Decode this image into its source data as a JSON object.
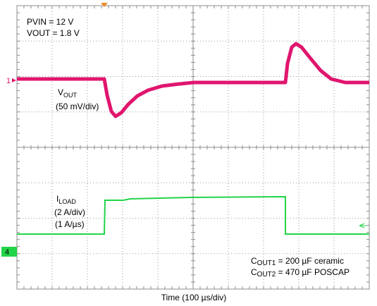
{
  "conditions": {
    "pvin": "PVIN = 12 V",
    "vout": "VOUT = 1.8 V"
  },
  "vout_label": {
    "main": "V",
    "sub": "OUT",
    "scale": "(50 mV/div)"
  },
  "iload_label": {
    "main": "I",
    "sub": "LOAD",
    "scale": "(2 A/div)",
    "slew": "(1 A/µs)"
  },
  "capacitors": [
    {
      "main": "C",
      "sub": "OUT1",
      "text": " = 200 µF ceramic"
    },
    {
      "main": "C",
      "sub": "OUT2",
      "text": " = 470 µF POSCAP"
    }
  ],
  "channels": {
    "ch1": "1",
    "ch4": "4"
  },
  "x_axis_label": "Time (100 µs/div)"
}
